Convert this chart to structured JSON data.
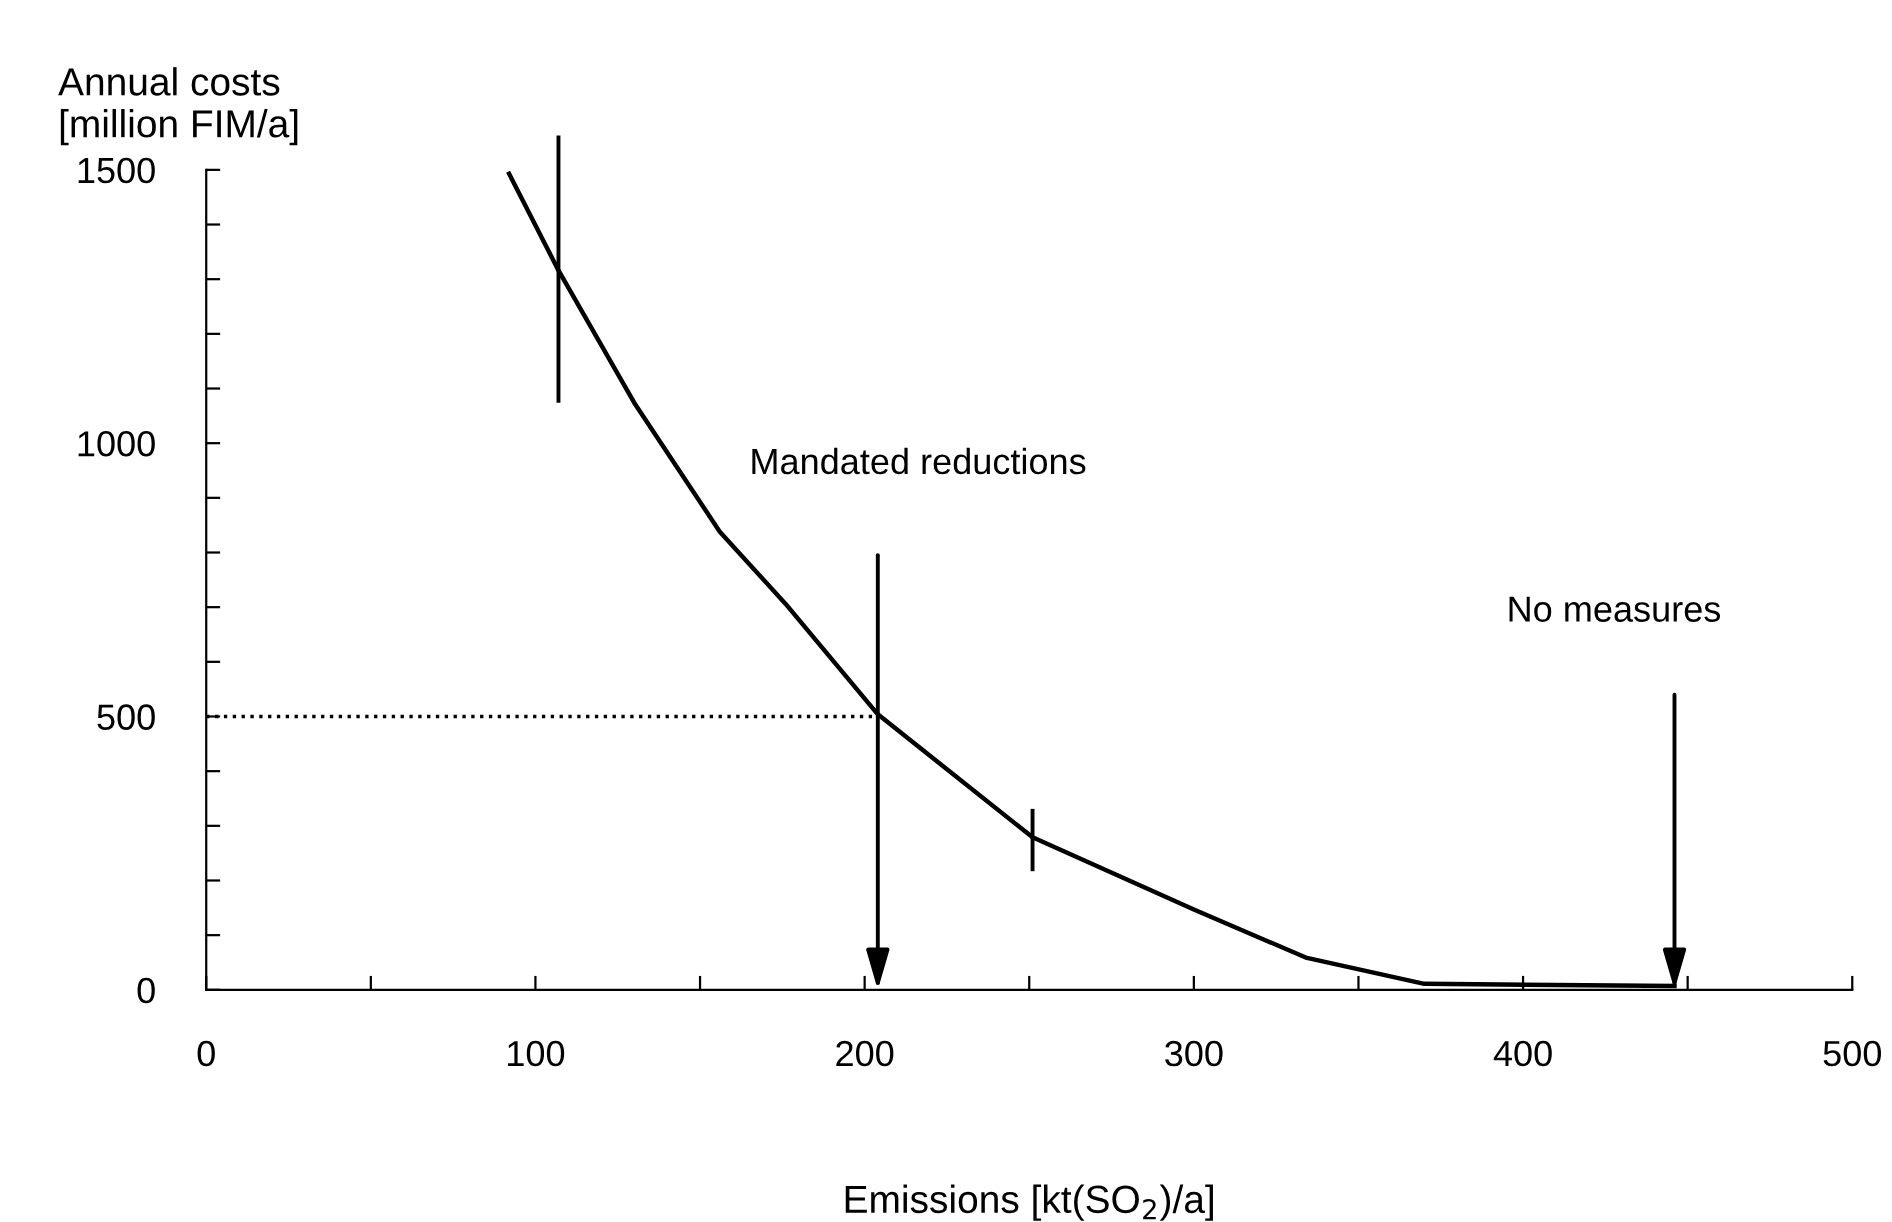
{
  "chart_data": {
    "type": "line",
    "xlabel": "Emissions [kt(SO$_{2}$)/a]",
    "ylabel": "Annual costs\n[million FIM/a]",
    "series": [
      {
        "color": "#000000",
        "x": [
          92,
          107,
          130,
          156,
          176,
          204,
          251,
          300,
          334,
          370,
          446
        ],
        "values": [
          1493,
          1316,
          1074,
          838,
          706,
          504,
          279,
          147,
          59,
          11,
          7
        ],
        "errors": [
          null,
          [
            1074,
            1563
          ],
          null,
          null,
          null,
          null,
          [
            217,
            331
          ],
          null,
          null,
          null,
          null
        ]
      },
      {
        "color": "#000000",
        "x": [
          0,
          204
        ],
        "values": [
          500,
          500
        ],
        "line_style": "dotted"
      }
    ],
    "annotations": [
      "Mandated reductions",
      "No measures"
    ],
    "xlim": [
      0,
      500
    ],
    "xticks": [
      0,
      {
        "value": 50,
        "label": null
      },
      100,
      {
        "value": 150,
        "label": null
      },
      200,
      {
        "value": 250,
        "label": null
      },
      300,
      {
        "value": 350,
        "label": null
      },
      400,
      {
        "value": 450,
        "label": null
      },
      500
    ],
    "ylim": [
      0,
      1500
    ],
    "yticks": [
      0,
      {
        "value": 100,
        "label": null
      },
      {
        "value": 200,
        "label": null
      },
      {
        "value": 300,
        "label": null
      },
      {
        "value": 400,
        "label": null
      },
      500,
      {
        "value": 600,
        "label": null
      },
      {
        "value": 700,
        "label": null
      },
      {
        "value": 800,
        "label": null
      },
      {
        "value": 900,
        "label": null
      },
      1000,
      {
        "value": 1100,
        "label": null
      },
      {
        "value": 1200,
        "label": null
      },
      {
        "value": 1300,
        "label": null
      },
      {
        "value": 1400,
        "label": null
      },
      1500
    ],
    "grid": false,
    "legend": false,
    "marker": "none",
    "line_style": "solid"
  }
}
